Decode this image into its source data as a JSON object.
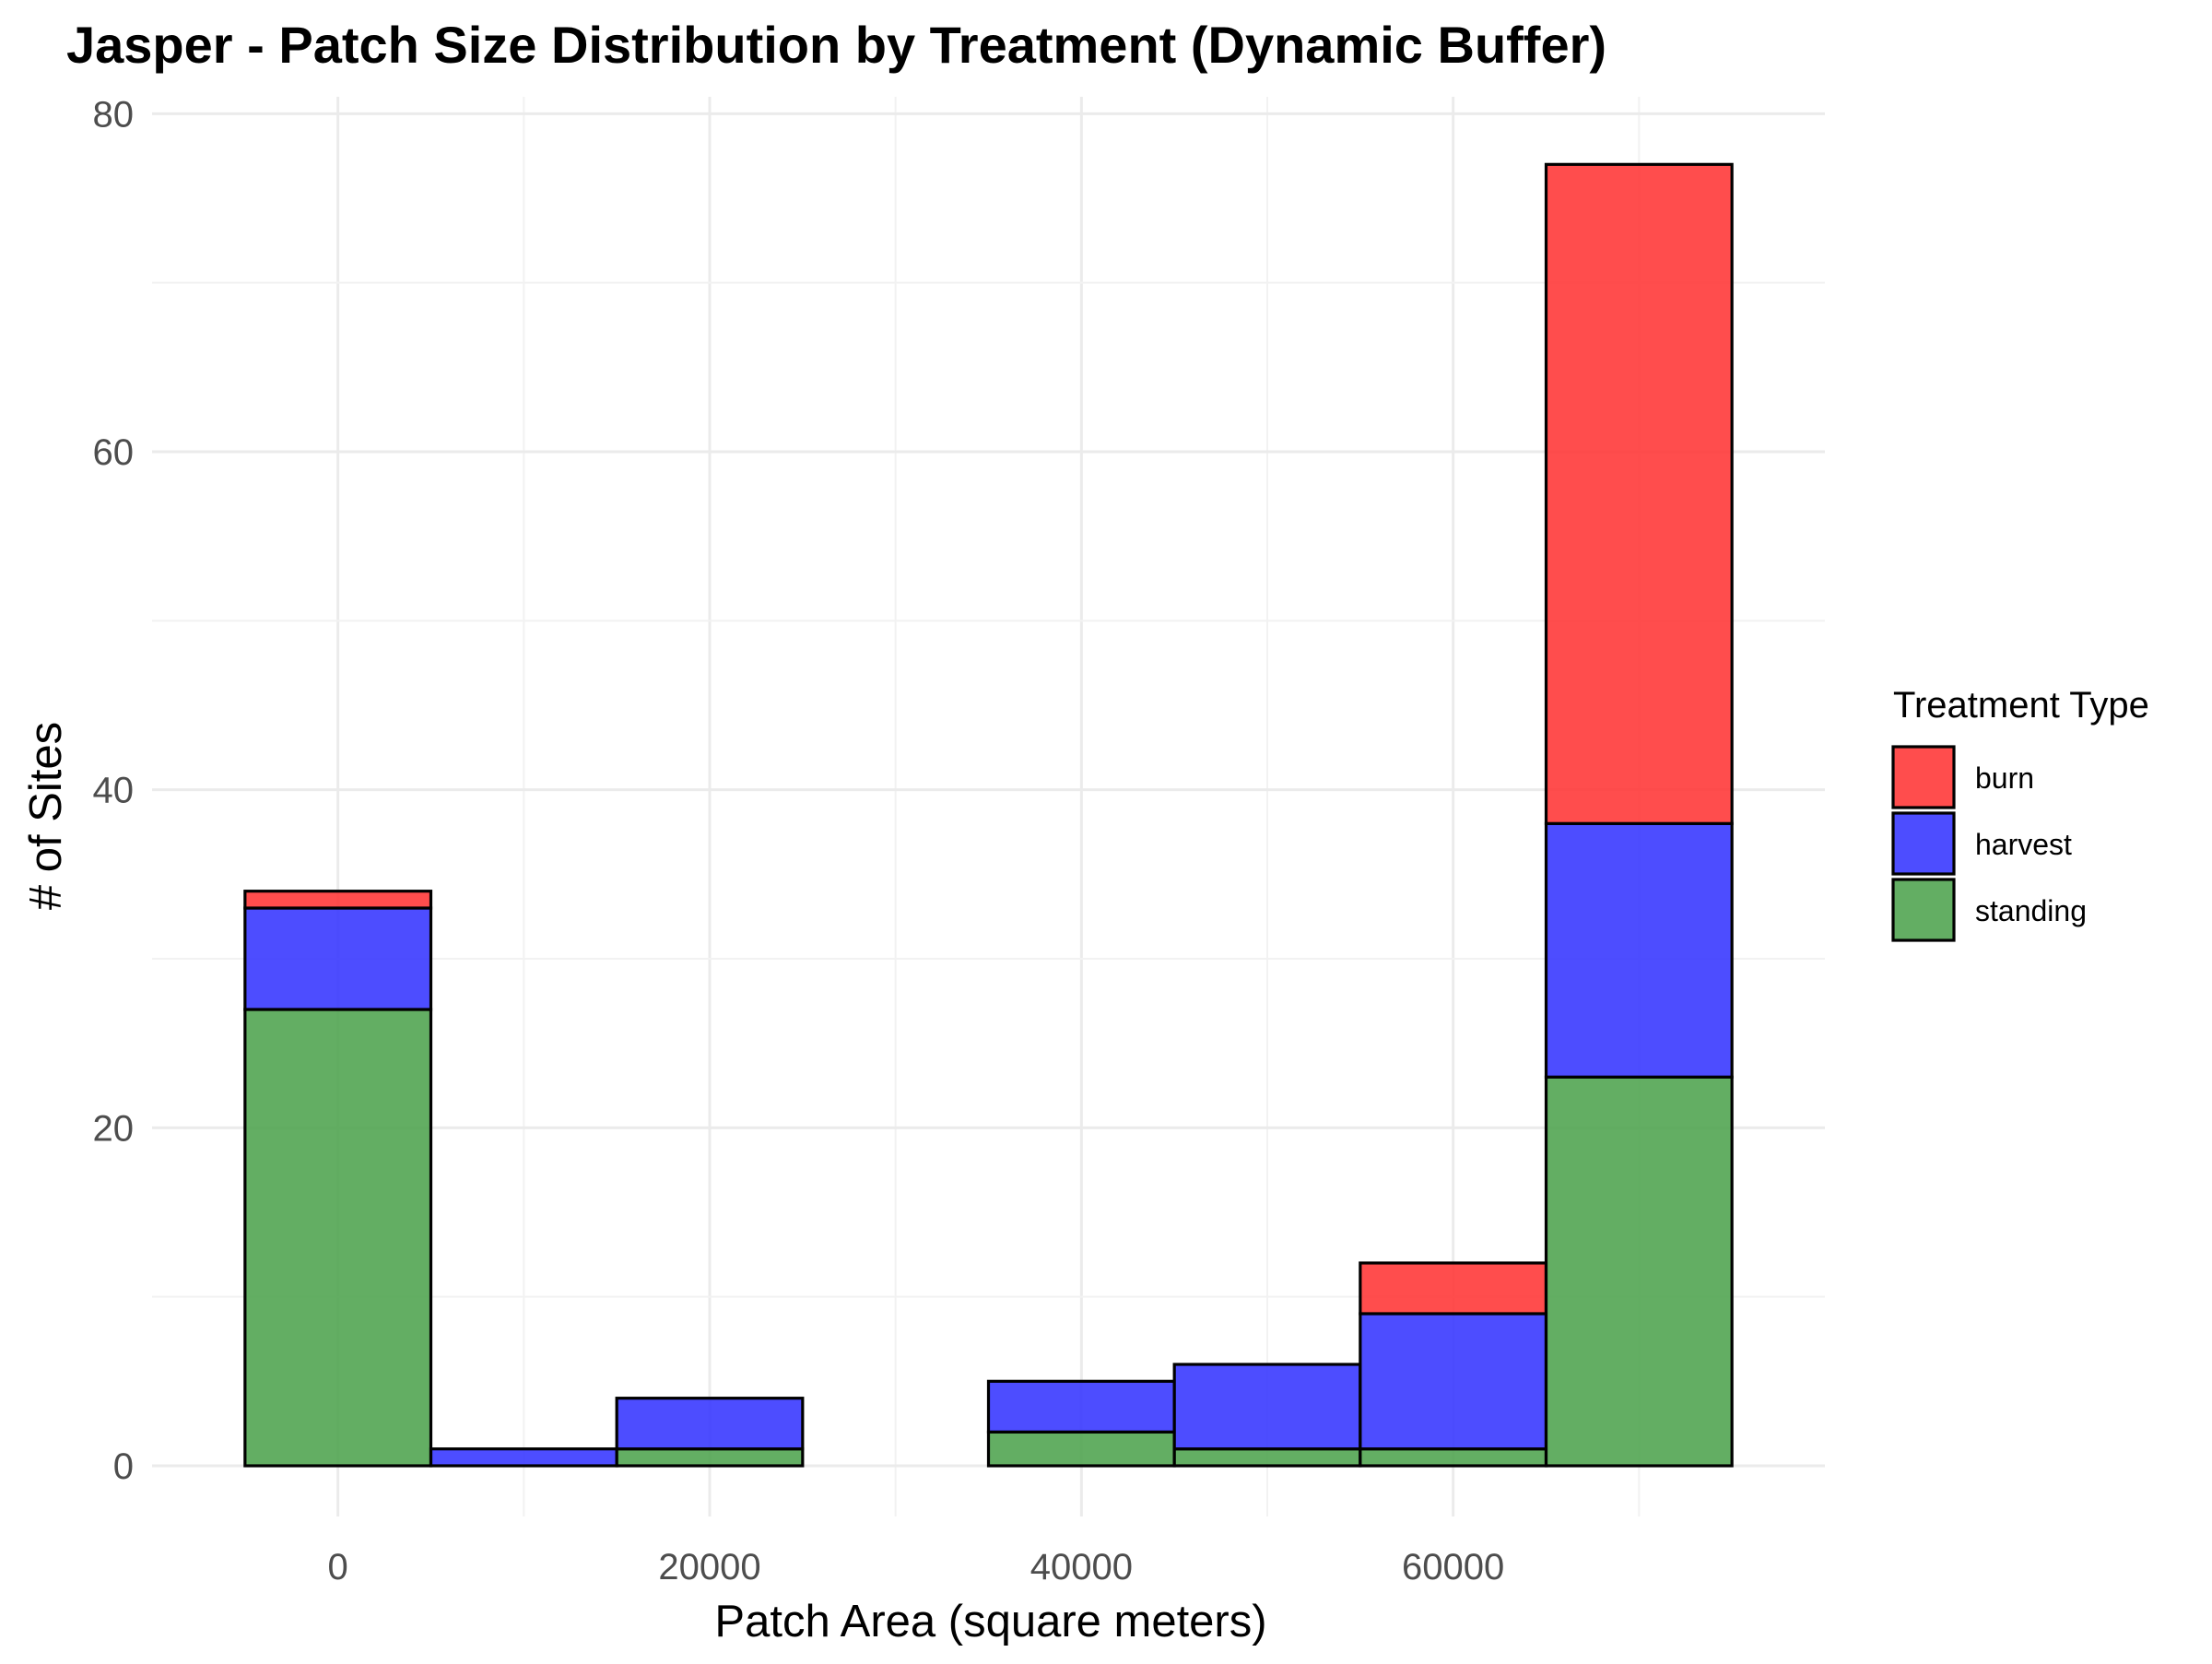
{
  "chart_data": {
    "type": "bar",
    "stacked": true,
    "title": "Jasper - Patch Size Distribution by Treatment (Dynamic Buffer)",
    "xlabel": "Patch Area (square meters)",
    "ylabel": "# of Sites",
    "xlim": [
      -10000,
      80000
    ],
    "ylim": [
      -3,
      81
    ],
    "x_ticks": [
      0,
      20000,
      40000,
      60000
    ],
    "x_tick_labels": [
      "0",
      "20000",
      "40000",
      "60000"
    ],
    "y_ticks": [
      0,
      20,
      40,
      60,
      80
    ],
    "y_tick_labels": [
      "0",
      "20",
      "40",
      "60",
      "80"
    ],
    "bin_width": 10000,
    "bin_centers": [
      0,
      10000,
      20000,
      30000,
      40000,
      50000,
      60000,
      70000
    ],
    "series": [
      {
        "name": "standing",
        "color": "#4CA24C",
        "values": [
          27,
          0,
          1,
          0,
          2,
          1,
          1,
          23
        ]
      },
      {
        "name": "harvest",
        "color": "#3333FF",
        "values": [
          6,
          1,
          3,
          0,
          3,
          5,
          8,
          15
        ]
      },
      {
        "name": "burn",
        "color": "#FF3333",
        "values": [
          1,
          0,
          0,
          0,
          0,
          0,
          3,
          39
        ]
      }
    ],
    "legend": {
      "title": "Treatment Type",
      "position": "right",
      "entries": [
        "burn",
        "harvest",
        "standing"
      ]
    },
    "grid": true
  }
}
